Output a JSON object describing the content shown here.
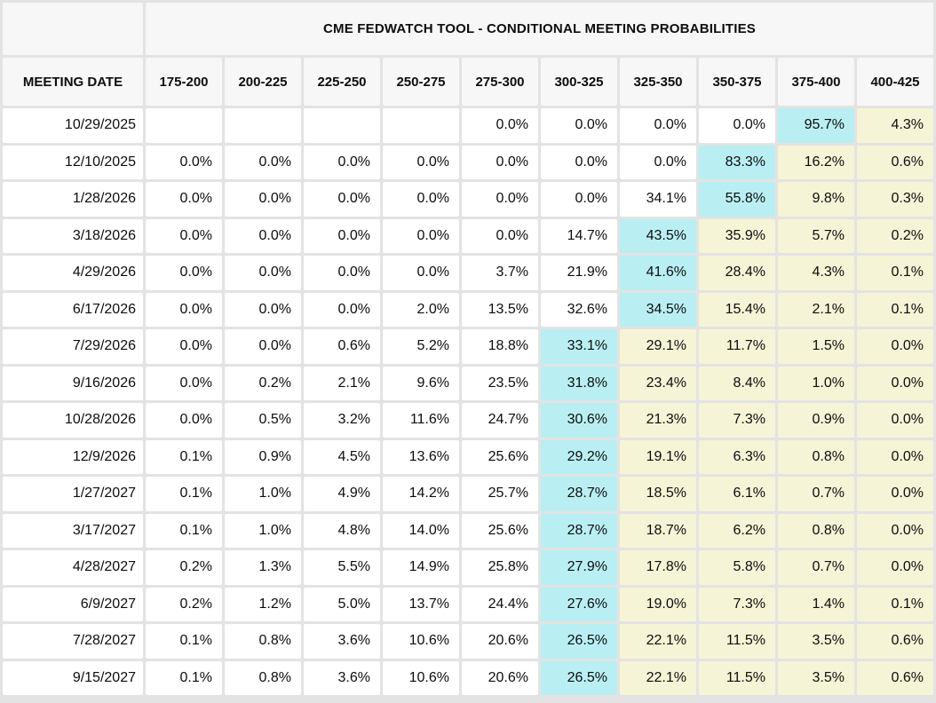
{
  "header": {
    "title": "CME FEDWATCH TOOL - CONDITIONAL MEETING PROBABILITIES",
    "meeting_date_label": "MEETING DATE"
  },
  "colors": {
    "max_probability_highlight_cyan": "#b9eff2",
    "right_of_max_highlight_yellow": "#f5f4d6",
    "header_cell_bg": "#f7f7f7",
    "data_cell_bg": "#ffffff",
    "grid_gap": "#e3e3e3",
    "text": "#0d0d0d"
  },
  "chart_data": {
    "type": "table",
    "title": "CME FEDWATCH TOOL - CONDITIONAL MEETING PROBABILITIES",
    "columns": [
      "MEETING DATE",
      "175-200",
      "200-225",
      "225-250",
      "250-275",
      "275-300",
      "300-325",
      "325-350",
      "350-375",
      "375-400",
      "400-425"
    ],
    "rows": [
      {
        "meeting_date": "10/29/2025",
        "probabilities": [
          "",
          "",
          "",
          "",
          "0.0%",
          "0.0%",
          "0.0%",
          "0.0%",
          "95.7%",
          "4.3%"
        ],
        "max_col_index": 8
      },
      {
        "meeting_date": "12/10/2025",
        "probabilities": [
          "0.0%",
          "0.0%",
          "0.0%",
          "0.0%",
          "0.0%",
          "0.0%",
          "0.0%",
          "83.3%",
          "16.2%",
          "0.6%"
        ],
        "max_col_index": 7
      },
      {
        "meeting_date": "1/28/2026",
        "probabilities": [
          "0.0%",
          "0.0%",
          "0.0%",
          "0.0%",
          "0.0%",
          "0.0%",
          "34.1%",
          "55.8%",
          "9.8%",
          "0.3%"
        ],
        "max_col_index": 7
      },
      {
        "meeting_date": "3/18/2026",
        "probabilities": [
          "0.0%",
          "0.0%",
          "0.0%",
          "0.0%",
          "0.0%",
          "14.7%",
          "43.5%",
          "35.9%",
          "5.7%",
          "0.2%"
        ],
        "max_col_index": 6
      },
      {
        "meeting_date": "4/29/2026",
        "probabilities": [
          "0.0%",
          "0.0%",
          "0.0%",
          "0.0%",
          "3.7%",
          "21.9%",
          "41.6%",
          "28.4%",
          "4.3%",
          "0.1%"
        ],
        "max_col_index": 6
      },
      {
        "meeting_date": "6/17/2026",
        "probabilities": [
          "0.0%",
          "0.0%",
          "0.0%",
          "2.0%",
          "13.5%",
          "32.6%",
          "34.5%",
          "15.4%",
          "2.1%",
          "0.1%"
        ],
        "max_col_index": 6
      },
      {
        "meeting_date": "7/29/2026",
        "probabilities": [
          "0.0%",
          "0.0%",
          "0.6%",
          "5.2%",
          "18.8%",
          "33.1%",
          "29.1%",
          "11.7%",
          "1.5%",
          "0.0%"
        ],
        "max_col_index": 5
      },
      {
        "meeting_date": "9/16/2026",
        "probabilities": [
          "0.0%",
          "0.2%",
          "2.1%",
          "9.6%",
          "23.5%",
          "31.8%",
          "23.4%",
          "8.4%",
          "1.0%",
          "0.0%"
        ],
        "max_col_index": 5
      },
      {
        "meeting_date": "10/28/2026",
        "probabilities": [
          "0.0%",
          "0.5%",
          "3.2%",
          "11.6%",
          "24.7%",
          "30.6%",
          "21.3%",
          "7.3%",
          "0.9%",
          "0.0%"
        ],
        "max_col_index": 5
      },
      {
        "meeting_date": "12/9/2026",
        "probabilities": [
          "0.1%",
          "0.9%",
          "4.5%",
          "13.6%",
          "25.6%",
          "29.2%",
          "19.1%",
          "6.3%",
          "0.8%",
          "0.0%"
        ],
        "max_col_index": 5
      },
      {
        "meeting_date": "1/27/2027",
        "probabilities": [
          "0.1%",
          "1.0%",
          "4.9%",
          "14.2%",
          "25.7%",
          "28.7%",
          "18.5%",
          "6.1%",
          "0.7%",
          "0.0%"
        ],
        "max_col_index": 5
      },
      {
        "meeting_date": "3/17/2027",
        "probabilities": [
          "0.1%",
          "1.0%",
          "4.8%",
          "14.0%",
          "25.6%",
          "28.7%",
          "18.7%",
          "6.2%",
          "0.8%",
          "0.0%"
        ],
        "max_col_index": 5
      },
      {
        "meeting_date": "4/28/2027",
        "probabilities": [
          "0.2%",
          "1.3%",
          "5.5%",
          "14.9%",
          "25.8%",
          "27.9%",
          "17.8%",
          "5.8%",
          "0.7%",
          "0.0%"
        ],
        "max_col_index": 5
      },
      {
        "meeting_date": "6/9/2027",
        "probabilities": [
          "0.2%",
          "1.2%",
          "5.0%",
          "13.7%",
          "24.4%",
          "27.6%",
          "19.0%",
          "7.3%",
          "1.4%",
          "0.1%"
        ],
        "max_col_index": 5
      },
      {
        "meeting_date": "7/28/2027",
        "probabilities": [
          "0.1%",
          "0.8%",
          "3.6%",
          "10.6%",
          "20.6%",
          "26.5%",
          "22.1%",
          "11.5%",
          "3.5%",
          "0.6%"
        ],
        "max_col_index": 5
      },
      {
        "meeting_date": "9/15/2027",
        "probabilities": [
          "0.1%",
          "0.8%",
          "3.6%",
          "10.6%",
          "20.6%",
          "26.5%",
          "22.1%",
          "11.5%",
          "3.5%",
          "0.6%"
        ],
        "max_col_index": 5
      }
    ]
  }
}
